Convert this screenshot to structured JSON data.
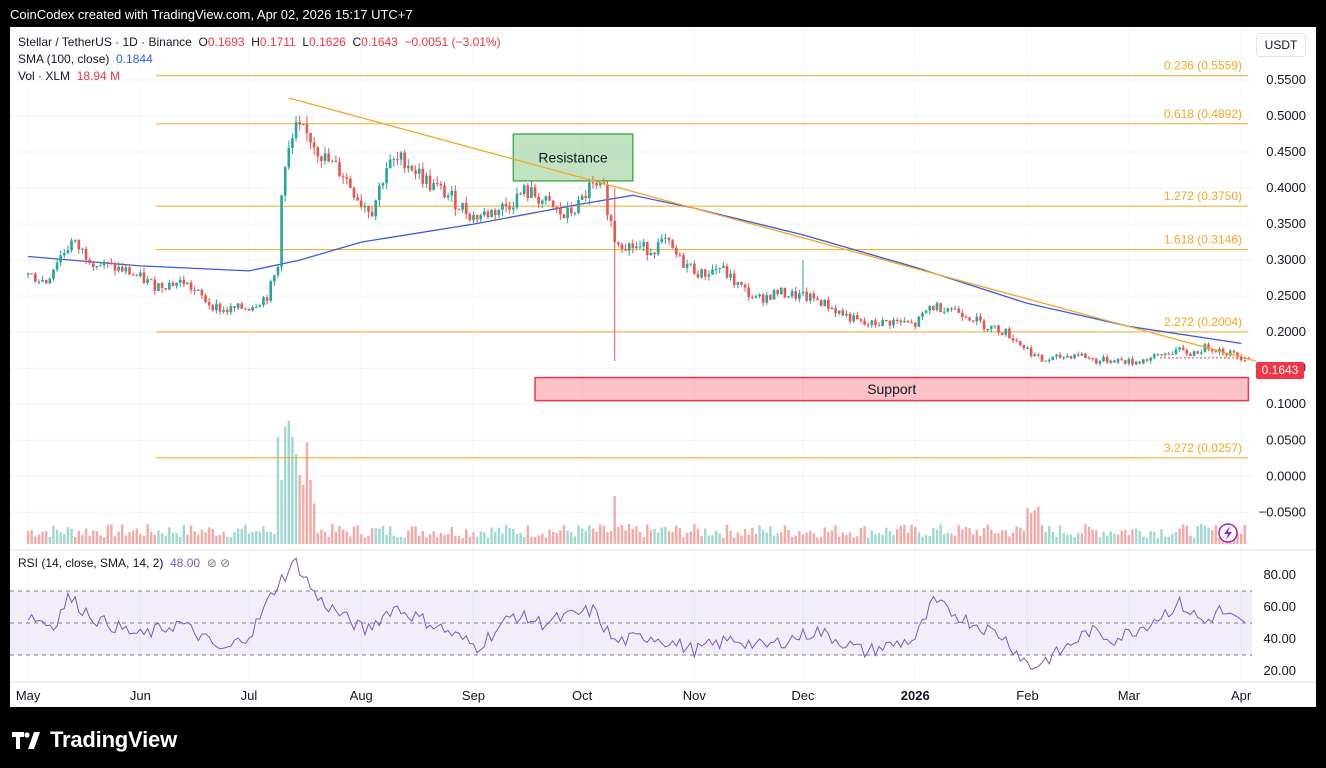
{
  "credit": "CoinCodex created with TradingView.com, Apr 02, 2026 15:17 UTC+7",
  "legend": {
    "symbol": "Stellar / TetherUS · 1D · Binance",
    "o_label": "O",
    "o_val": "0.1693",
    "h_label": "H",
    "h_val": "0.1711",
    "l_label": "L",
    "l_val": "0.1626",
    "c_label": "C",
    "c_val": "0.1643",
    "change": "−0.0051 (−3.01%)",
    "sma_label": "SMA (100, close)",
    "sma_val": "0.1844",
    "vol_label": "Vol · XLM",
    "vol_val": "18.94 M",
    "rsi_label": "RSI (14, close, SMA, 14, 2)",
    "rsi_val": "48.00",
    "rsi_icons": "⊘ ⊘"
  },
  "currency": "USDT",
  "last_price_tag": "0.1643",
  "footer_brand": "TradingView",
  "colors": {
    "up": "#26a69a",
    "down": "#ef5350",
    "sma": "#3b5bdb",
    "fib": "#f5a623",
    "trend": "#f5a623",
    "rsi": "#7e57c2",
    "support": "#f23645",
    "resistance": "#4caf50"
  },
  "chart_data": [
    {
      "type": "candlestick",
      "title": "Stellar / TetherUS · 1D · Binance",
      "ylim": [
        -0.075,
        0.58
      ],
      "y_ticks": [
        "0.5500",
        "0.5000",
        "0.4500",
        "0.4000",
        "0.3500",
        "0.3000",
        "0.2500",
        "0.2000",
        "0.1500",
        "0.1000",
        "0.0500",
        "0.0000",
        "−0.0500"
      ],
      "x_ticks": [
        "May",
        "Jun",
        "Jul",
        "Aug",
        "Sep",
        "Oct",
        "Nov",
        "Dec",
        "2026",
        "Feb",
        "Mar",
        "Apr"
      ],
      "close_path": [
        [
          "2025-05-01",
          0.28
        ],
        [
          "2025-05-06",
          0.27
        ],
        [
          "2025-05-09",
          0.3
        ],
        [
          "2025-05-13",
          0.325
        ],
        [
          "2025-05-20",
          0.295
        ],
        [
          "2025-05-28",
          0.285
        ],
        [
          "2025-06-05",
          0.265
        ],
        [
          "2025-06-13",
          0.27
        ],
        [
          "2025-06-20",
          0.24
        ],
        [
          "2025-06-24",
          0.23
        ],
        [
          "2025-07-01",
          0.235
        ],
        [
          "2025-07-06",
          0.25
        ],
        [
          "2025-07-09",
          0.29
        ],
        [
          "2025-07-10",
          0.4
        ],
        [
          "2025-07-12",
          0.45
        ],
        [
          "2025-07-14",
          0.48
        ],
        [
          "2025-07-18",
          0.47
        ],
        [
          "2025-07-22",
          0.44
        ],
        [
          "2025-07-27",
          0.42
        ],
        [
          "2025-08-01",
          0.38
        ],
        [
          "2025-08-04",
          0.37
        ],
        [
          "2025-08-08",
          0.43
        ],
        [
          "2025-08-13",
          0.44
        ],
        [
          "2025-08-20",
          0.405
        ],
        [
          "2025-08-25",
          0.39
        ],
        [
          "2025-09-01",
          0.36
        ],
        [
          "2025-09-05",
          0.365
        ],
        [
          "2025-09-10",
          0.375
        ],
        [
          "2025-09-15",
          0.395
        ],
        [
          "2025-09-18",
          0.39
        ],
        [
          "2025-09-22",
          0.375
        ],
        [
          "2025-09-26",
          0.36
        ],
        [
          "2025-09-30",
          0.375
        ],
        [
          "2025-10-03",
          0.4
        ],
        [
          "2025-10-07",
          0.395
        ],
        [
          "2025-10-10",
          0.33
        ],
        [
          "2025-10-14",
          0.32
        ],
        [
          "2025-10-20",
          0.315
        ],
        [
          "2025-10-24",
          0.325
        ],
        [
          "2025-10-28",
          0.3
        ],
        [
          "2025-11-03",
          0.28
        ],
        [
          "2025-11-08",
          0.29
        ],
        [
          "2025-11-12",
          0.27
        ],
        [
          "2025-11-18",
          0.245
        ],
        [
          "2025-11-24",
          0.255
        ],
        [
          "2025-11-30",
          0.25
        ],
        [
          "2025-12-05",
          0.245
        ],
        [
          "2025-12-12",
          0.225
        ],
        [
          "2025-12-18",
          0.21
        ],
        [
          "2025-12-26",
          0.215
        ],
        [
          "2026-01-01",
          0.21
        ],
        [
          "2026-01-05",
          0.235
        ],
        [
          "2026-01-10",
          0.235
        ],
        [
          "2026-01-15",
          0.225
        ],
        [
          "2026-01-20",
          0.21
        ],
        [
          "2026-01-26",
          0.2
        ],
        [
          "2026-01-31",
          0.18
        ],
        [
          "2026-02-05",
          0.16
        ],
        [
          "2026-02-10",
          0.165
        ],
        [
          "2026-02-15",
          0.17
        ],
        [
          "2026-02-20",
          0.16
        ],
        [
          "2026-02-25",
          0.162
        ],
        [
          "2026-03-02",
          0.158
        ],
        [
          "2026-03-08",
          0.165
        ],
        [
          "2026-03-14",
          0.175
        ],
        [
          "2026-03-18",
          0.17
        ],
        [
          "2026-03-23",
          0.18
        ],
        [
          "2026-03-28",
          0.172
        ],
        [
          "2026-04-02",
          0.1643
        ]
      ],
      "sma_100_path": [
        [
          "2025-05-01",
          0.305
        ],
        [
          "2025-06-01",
          0.292
        ],
        [
          "2025-07-01",
          0.285
        ],
        [
          "2025-07-15",
          0.3
        ],
        [
          "2025-08-01",
          0.325
        ],
        [
          "2025-09-01",
          0.35
        ],
        [
          "2025-10-01",
          0.378
        ],
        [
          "2025-10-15",
          0.39
        ],
        [
          "2025-11-01",
          0.372
        ],
        [
          "2025-12-01",
          0.335
        ],
        [
          "2026-01-01",
          0.29
        ],
        [
          "2026-02-01",
          0.24
        ],
        [
          "2026-03-01",
          0.208
        ],
        [
          "2026-04-01",
          0.1844
        ]
      ],
      "fib_levels": [
        {
          "label": "0.236 (0.5559)",
          "value": 0.5559
        },
        {
          "label": "0.618 (0.4892)",
          "value": 0.4892
        },
        {
          "label": "1.272 (0.3750)",
          "value": 0.375
        },
        {
          "label": "1.618 (0.3146)",
          "value": 0.3146
        },
        {
          "label": "2.272 (0.2004)",
          "value": 0.2004
        },
        {
          "label": "3.272 (0.0257)",
          "value": 0.0257
        }
      ],
      "trendline": [
        [
          "2025-07-12",
          0.525
        ],
        [
          "2026-04-05",
          0.16
        ]
      ],
      "annotations": [
        {
          "label": "Resistance",
          "x": [
            "2025-09-12",
            "2025-10-15"
          ],
          "y": [
            0.41,
            0.475
          ]
        },
        {
          "label": "Support",
          "x": [
            "2025-09-18",
            "2026-04-03"
          ],
          "y": [
            0.105,
            0.137
          ]
        }
      ],
      "volume": "Vol · XLM",
      "grid": true
    },
    {
      "type": "line",
      "title": "RSI (14, close, SMA, 14, 2)",
      "ylim": [
        15,
        90
      ],
      "y_ticks": [
        "80.00",
        "60.00",
        "40.00",
        "20.00"
      ],
      "bands": [
        30,
        50,
        70
      ],
      "path": [
        [
          "2025-05-01",
          55
        ],
        [
          "2025-05-08",
          48
        ],
        [
          "2025-05-12",
          66
        ],
        [
          "2025-05-20",
          52
        ],
        [
          "2025-06-01",
          42
        ],
        [
          "2025-06-12",
          50
        ],
        [
          "2025-06-24",
          32
        ],
        [
          "2025-07-02",
          45
        ],
        [
          "2025-07-09",
          75
        ],
        [
          "2025-07-14",
          88
        ],
        [
          "2025-07-20",
          65
        ],
        [
          "2025-08-02",
          45
        ],
        [
          "2025-08-10",
          60
        ],
        [
          "2025-08-22",
          48
        ],
        [
          "2025-09-02",
          35
        ],
        [
          "2025-09-12",
          55
        ],
        [
          "2025-09-20",
          50
        ],
        [
          "2025-10-04",
          58
        ],
        [
          "2025-10-10",
          38
        ],
        [
          "2025-10-20",
          42
        ],
        [
          "2025-11-01",
          33
        ],
        [
          "2025-11-12",
          40
        ],
        [
          "2025-11-20",
          35
        ],
        [
          "2025-12-05",
          45
        ],
        [
          "2025-12-18",
          32
        ],
        [
          "2026-01-01",
          40
        ],
        [
          "2026-01-06",
          63
        ],
        [
          "2026-01-15",
          52
        ],
        [
          "2026-01-25",
          42
        ],
        [
          "2026-02-02",
          22
        ],
        [
          "2026-02-10",
          32
        ],
        [
          "2026-02-18",
          45
        ],
        [
          "2026-02-25",
          40
        ],
        [
          "2026-03-05",
          48
        ],
        [
          "2026-03-15",
          62
        ],
        [
          "2026-03-22",
          50
        ],
        [
          "2026-03-26",
          58
        ],
        [
          "2026-04-02",
          48
        ]
      ]
    }
  ]
}
